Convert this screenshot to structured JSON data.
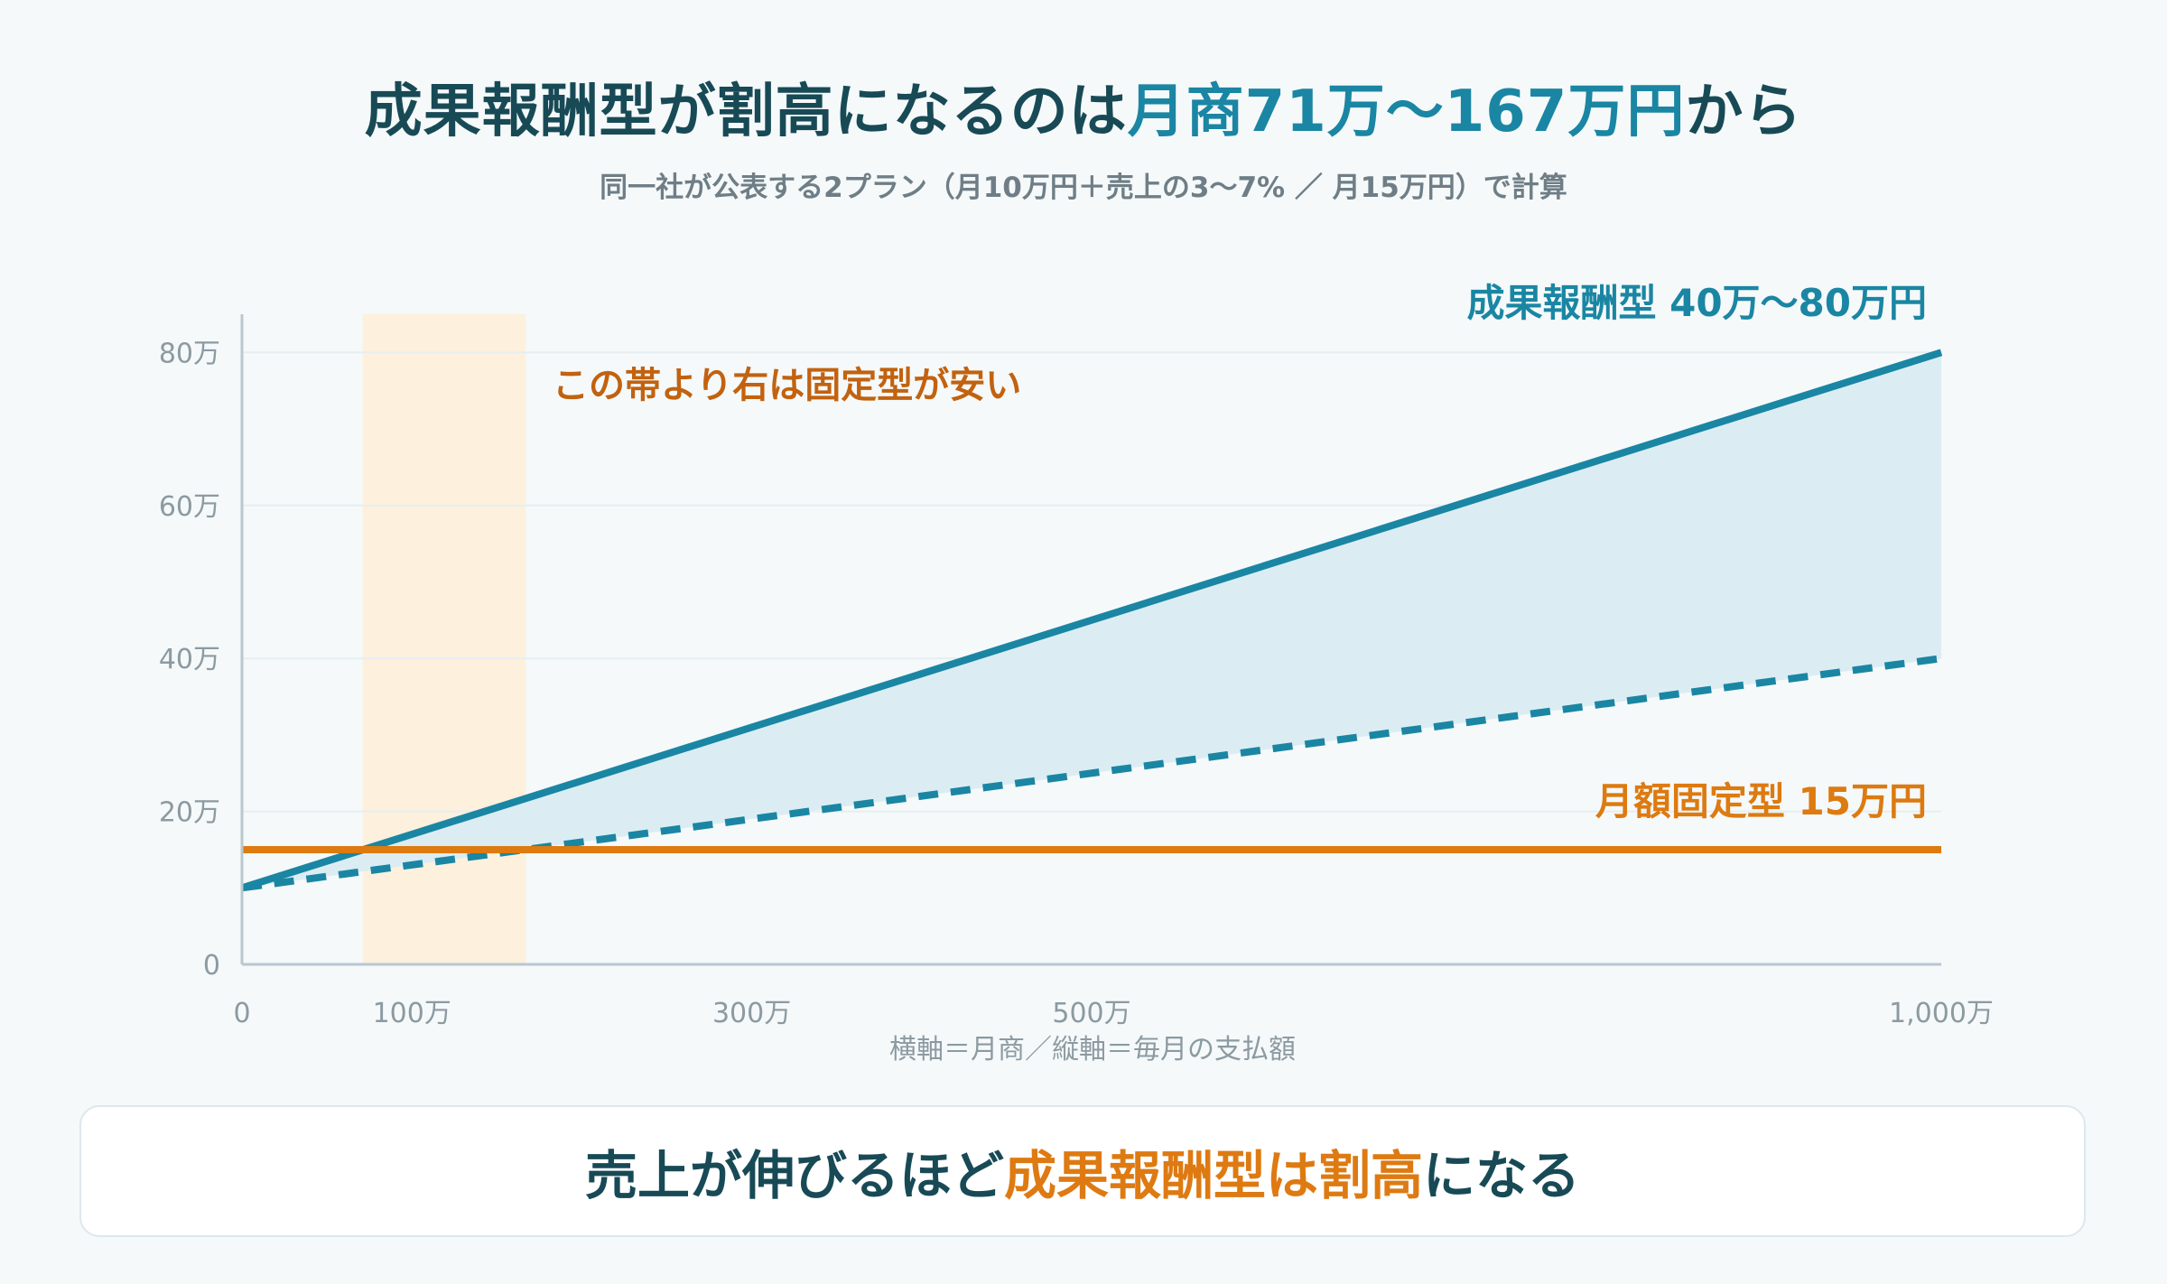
{
  "header": {
    "title_part1": "成果報酬型が割高になるのは",
    "title_highlight": "月商71万〜167万円",
    "title_part2": "から",
    "subtitle": "同一社が公表する2プラン（月10万円＋売上の3〜7% ／ 月15万円）で計算"
  },
  "colors": {
    "performance": "#1a86a3",
    "fixed": "#dd7a10",
    "band": "#fdf0dd",
    "band_label": "#c2620f",
    "fill": "#dbedf3",
    "axis": "#b9c8cf",
    "grid": "#e6eef1",
    "tick_text": "#8c9aa1"
  },
  "chart_data": {
    "type": "line",
    "x_unit": "万円 (月商)",
    "y_unit": "万円 (毎月の支払額)",
    "xlim": [
      0,
      1000
    ],
    "ylim": [
      0,
      85
    ],
    "x_ticks": [
      {
        "value": 0,
        "label": "0"
      },
      {
        "value": 100,
        "label": "100万"
      },
      {
        "value": 300,
        "label": "300万"
      },
      {
        "value": 500,
        "label": "500万"
      },
      {
        "value": 1000,
        "label": "1,000万"
      }
    ],
    "y_ticks": [
      {
        "value": 0,
        "label": "0"
      },
      {
        "value": 20,
        "label": "20万"
      },
      {
        "value": 40,
        "label": "40万"
      },
      {
        "value": 60,
        "label": "60万"
      },
      {
        "value": 80,
        "label": "80万"
      }
    ],
    "grid": true,
    "axis_note": "横軸＝月商／縦軸＝毎月の支払額",
    "series": [
      {
        "name": "成果報酬型 40万〜80万円",
        "label": "成果報酬型 40万〜80万円",
        "style": "solid",
        "x": [
          0,
          1000
        ],
        "y": [
          10,
          80
        ]
      },
      {
        "name": "",
        "style": "dashed",
        "x": [
          0,
          1000
        ],
        "y": [
          10,
          40
        ]
      },
      {
        "name": "月額固定型 15万円",
        "label": "月額固定型 15万円",
        "style": "solid",
        "x": [
          0,
          1000
        ],
        "y": [
          15,
          15
        ]
      }
    ],
    "band": {
      "x_from": 71,
      "x_to": 167,
      "label": "この帯より右は固定型が安い"
    }
  },
  "callout": {
    "part1": "売上が伸びるほど",
    "accent": "成果報酬型は割高",
    "part2": "になる"
  }
}
